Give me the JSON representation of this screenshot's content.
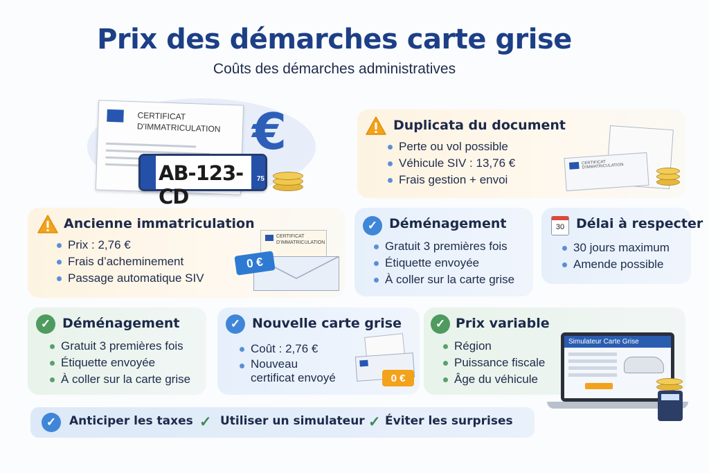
{
  "header": {
    "title": "Prix des démarches carte grise",
    "subtitle": "Coûts des démarches administratives"
  },
  "hero": {
    "certificate_title_line1": "CERTIFICAT",
    "certificate_title_line2": "D'IMMATRICULATION",
    "plate_number": "AB-123-CD",
    "plate_dept": "75",
    "euro_symbol": "€"
  },
  "cards": {
    "duplicata": {
      "title": "Duplicata du document",
      "items": [
        "Perte ou vol possible",
        "Véhicule SIV : 13,76 €",
        "Frais gestion + envoi"
      ],
      "doc_label": "CERTIFICAT D'IMMATRICULATION"
    },
    "ancienne": {
      "title": "Ancienne immatriculation",
      "items": [
        "Prix : 2,76 €",
        "Frais d’acheminement",
        "Passage automatique SIV"
      ],
      "doc_label_line1": "CERTIFICAT",
      "doc_label_line2": "D'IMMATRICULATION",
      "tag": "0 €"
    },
    "demenagement_top": {
      "title": "Déménagement",
      "items": [
        "Gratuit 3 premières fois",
        "Étiquette envoyée",
        "À coller sur la carte grise"
      ]
    },
    "delai": {
      "title": "Délai à respecter",
      "calendar_day": "30",
      "items": [
        "30 jours maximum",
        "Amende possible"
      ]
    },
    "demenagement_bottom": {
      "title": "Déménagement",
      "items": [
        "Gratuit 3 premières fois",
        "Étiquette envoyée",
        "À coller sur la carte grise"
      ]
    },
    "nouvelle": {
      "title": "Nouvelle carte grise",
      "items": [
        "Coût : 2,76 €",
        "Nouveau certificat envoyé"
      ],
      "tag": "0 €"
    },
    "variable": {
      "title": "Prix variable",
      "items": [
        "Région",
        "Puissance fiscale",
        "Âge du véhicule"
      ],
      "laptop_header": "Simulateur Carte Grise"
    }
  },
  "bottom": {
    "items": [
      "Anticiper les taxes",
      "Utiliser un simulateur",
      "Éviter les surprises"
    ]
  },
  "colors": {
    "title_blue": "#1c3f86",
    "warn_orange": "#f2a21b",
    "check_blue": "#3f86d8",
    "check_green": "#4f9a5f"
  }
}
